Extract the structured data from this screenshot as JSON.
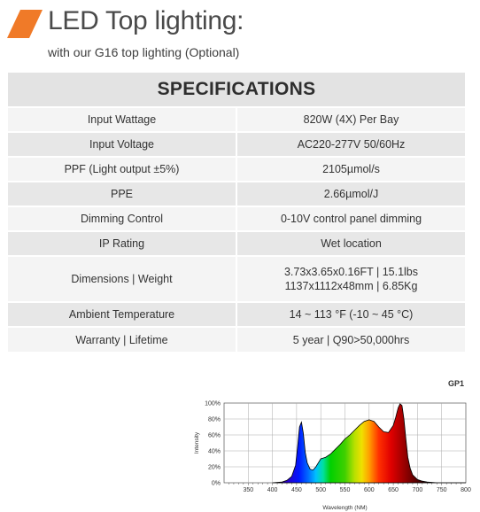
{
  "header": {
    "title": "LED Top lighting:",
    "subtitle": "with our G16 top lighting (Optional)",
    "accent_color": "#f07a28"
  },
  "specs": {
    "heading": "SPECIFICATIONS",
    "rows": [
      {
        "label": "Input Wattage",
        "value": [
          "820W (4X) Per Bay"
        ]
      },
      {
        "label": "Input Voltage",
        "value": [
          "AC220-277V  50/60Hz"
        ]
      },
      {
        "label": "PPF (Light output ±5%)",
        "value": [
          "2105µmol/s"
        ]
      },
      {
        "label": "PPE",
        "value": [
          "2.66µmol/J"
        ]
      },
      {
        "label": "Dimming Control",
        "value": [
          "0-10V control panel dimming"
        ]
      },
      {
        "label": "IP Rating",
        "value": [
          "Wet location"
        ]
      },
      {
        "label": "Dimensions | Weight",
        "value": [
          "3.73x3.65x0.16FT | 15.1lbs",
          "1137x1112x48mm | 6.85Kg"
        ]
      },
      {
        "label": "Ambient Temperature",
        "value": [
          "14 ~ 113 °F (-10 ~ 45 °C)"
        ]
      },
      {
        "label": "Warranty | Lifetime",
        "value": [
          "5 year | Q90>50,000hrs"
        ]
      }
    ]
  },
  "chart_data": {
    "type": "area",
    "title": "GP1",
    "xlabel": "Wavelength (NM)",
    "ylabel": "Intensity",
    "xlim": [
      300,
      800
    ],
    "ylim": [
      0,
      100
    ],
    "x_ticks": [
      "350",
      "400",
      "450",
      "500",
      "550",
      "600",
      "650",
      "700",
      "750",
      "800"
    ],
    "y_ticks": [
      "0%",
      "20%",
      "40%",
      "60%",
      "80%",
      "100%"
    ],
    "grid": true,
    "series": [
      {
        "x": [
          400,
          420,
          430,
          440,
          448,
          452,
          456,
          460,
          464,
          468,
          472,
          478,
          484,
          490,
          496,
          500,
          505,
          510,
          520,
          530,
          540,
          550,
          560,
          570,
          580,
          590,
          600,
          610,
          620,
          630,
          640,
          650,
          655,
          660,
          664,
          668,
          672,
          676,
          680,
          685,
          690,
          700,
          710,
          720,
          740,
          760,
          780,
          800
        ],
        "y": [
          0,
          1,
          3,
          8,
          22,
          45,
          70,
          76,
          62,
          38,
          25,
          17,
          16,
          20,
          26,
          30,
          31,
          32,
          36,
          42,
          48,
          55,
          60,
          66,
          72,
          77,
          79,
          77,
          70,
          64,
          63,
          72,
          82,
          94,
          99,
          97,
          80,
          55,
          32,
          18,
          10,
          4,
          2,
          1,
          0,
          0,
          0,
          0
        ]
      }
    ]
  }
}
